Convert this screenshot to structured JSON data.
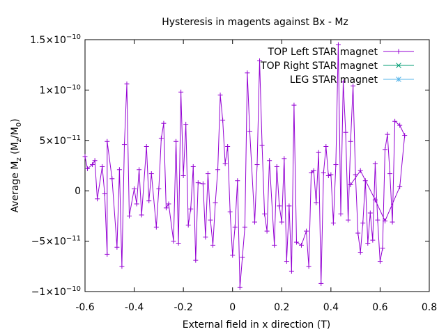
{
  "chart_data": {
    "type": "line",
    "title": "Hysteresis in magents against Bx - Mz",
    "xlabel": "External field in x direction (T)",
    "ylabel_base": "Average M",
    "ylabel_sub": "z",
    "ylabel_paren_open": " (M",
    "ylabel_sub2": "z",
    "ylabel_slash": "/M",
    "ylabel_sub3": "0",
    "ylabel_paren_close": ")",
    "xlim": [
      -0.6,
      0.8
    ],
    "ylim": [
      -1e-10,
      1.5e-10
    ],
    "x_ticks": [
      {
        "value": -0.6,
        "label": "-0.6"
      },
      {
        "value": -0.4,
        "label": "-0.4"
      },
      {
        "value": -0.2,
        "label": "-0.2"
      },
      {
        "value": 0,
        "label": "0"
      },
      {
        "value": 0.2,
        "label": "0.2"
      },
      {
        "value": 0.4,
        "label": "0.4"
      },
      {
        "value": 0.6,
        "label": "0.6"
      },
      {
        "value": 0.8,
        "label": "0.8"
      }
    ],
    "y_ticks": [
      {
        "value": -1e-10,
        "mant": "−1×10",
        "exp": "−10"
      },
      {
        "value": -5e-11,
        "mant": "−5×10",
        "exp": "−11"
      },
      {
        "value": 0,
        "mant": "0",
        "exp": ""
      },
      {
        "value": 5e-11,
        "mant": "5×10",
        "exp": "−11"
      },
      {
        "value": 1e-10,
        "mant": "1×10",
        "exp": "−10"
      },
      {
        "value": 1.5e-10,
        "mant": "1.5×10",
        "exp": "−10"
      }
    ],
    "grid": false,
    "legend_position": "top-right",
    "series": [
      {
        "name": "TOP Left STAR magnet",
        "color": "#9400d3",
        "marker": "plus",
        "points": [
          [
            -0.6,
            3.4e-11
          ],
          [
            -0.59,
            2.2e-11
          ],
          [
            -0.57,
            2.6e-11
          ],
          [
            -0.56,
            3e-11
          ],
          [
            -0.55,
            -8e-12
          ],
          [
            -0.53,
            2.4e-11
          ],
          [
            -0.52,
            -3e-12
          ],
          [
            -0.51,
            -6.3e-11
          ],
          [
            -0.51,
            4.9e-11
          ],
          [
            -0.49,
            1.2e-11
          ],
          [
            -0.47,
            -5.6e-11
          ],
          [
            -0.46,
            2.1e-11
          ],
          [
            -0.45,
            -7.5e-11
          ],
          [
            -0.44,
            4.6e-11
          ],
          [
            -0.43,
            1.06e-10
          ],
          [
            -0.42,
            -2.5e-11
          ],
          [
            -0.4,
            2e-12
          ],
          [
            -0.39,
            -1.3e-11
          ],
          [
            -0.38,
            2.1e-11
          ],
          [
            -0.37,
            -2.4e-11
          ],
          [
            -0.35,
            4.4e-11
          ],
          [
            -0.34,
            -1e-11
          ],
          [
            -0.33,
            1.7e-11
          ],
          [
            -0.31,
            -3.6e-11
          ],
          [
            -0.3,
            2e-12
          ],
          [
            -0.29,
            5.2e-11
          ],
          [
            -0.28,
            6.7e-11
          ],
          [
            -0.27,
            -1.7e-11
          ],
          [
            -0.26,
            -1.3e-11
          ],
          [
            -0.24,
            -5e-11
          ],
          [
            -0.23,
            4.9e-11
          ],
          [
            -0.22,
            -5.2e-11
          ],
          [
            -0.21,
            9.8e-11
          ],
          [
            -0.2,
            1.5e-11
          ],
          [
            -0.19,
            6.6e-11
          ],
          [
            -0.18,
            -3.4e-11
          ],
          [
            -0.17,
            -1.8e-11
          ],
          [
            -0.16,
            2.4e-11
          ],
          [
            -0.15,
            -6.9e-11
          ],
          [
            -0.14,
            8e-12
          ],
          [
            -0.12,
            7e-12
          ],
          [
            -0.11,
            -4.6e-11
          ],
          [
            -0.1,
            1.7e-11
          ],
          [
            -0.09,
            -2.9e-11
          ],
          [
            -0.08,
            -5.4e-11
          ],
          [
            -0.07,
            -1.2e-11
          ],
          [
            -0.06,
            2.1e-11
          ],
          [
            -0.05,
            9.5e-11
          ],
          [
            -0.04,
            7e-11
          ],
          [
            -0.03,
            2.7e-11
          ],
          [
            -0.02,
            4.4e-11
          ],
          [
            -0.01,
            -2.1e-11
          ],
          [
            0.0,
            -6.4e-11
          ],
          [
            0.01,
            -3.6e-11
          ],
          [
            0.02,
            1e-11
          ],
          [
            0.03,
            -9.6e-11
          ],
          [
            0.04,
            -6.6e-11
          ],
          [
            0.05,
            -3.6e-11
          ],
          [
            0.06,
            1.17e-10
          ],
          [
            0.07,
            5.9e-11
          ],
          [
            0.09,
            -3.1e-11
          ],
          [
            0.1,
            2.6e-11
          ],
          [
            0.11,
            1.29e-10
          ],
          [
            0.12,
            4.5e-11
          ],
          [
            0.13,
            -2.3e-11
          ],
          [
            0.14,
            -4e-11
          ],
          [
            0.15,
            3e-11
          ],
          [
            0.17,
            -5.4e-11
          ],
          [
            0.18,
            2.4e-11
          ],
          [
            0.19,
            -1.5e-11
          ],
          [
            0.2,
            -3.1e-11
          ],
          [
            0.21,
            3.2e-11
          ],
          [
            0.22,
            -7e-11
          ],
          [
            0.23,
            -1.5e-11
          ],
          [
            0.24,
            -8e-11
          ],
          [
            0.25,
            8.5e-11
          ],
          [
            0.26,
            -5.1e-11
          ],
          [
            0.28,
            -5.4e-11
          ],
          [
            0.3,
            -4e-11
          ],
          [
            0.31,
            -7.5e-11
          ],
          [
            0.32,
            1.8e-11
          ],
          [
            0.33,
            2e-11
          ],
          [
            0.34,
            -1.2e-11
          ],
          [
            0.35,
            3.8e-11
          ],
          [
            0.36,
            -9.2e-11
          ],
          [
            0.37,
            1.8e-11
          ],
          [
            0.38,
            4.4e-11
          ],
          [
            0.39,
            1.5e-11
          ],
          [
            0.4,
            1.6e-11
          ],
          [
            0.41,
            -3.2e-11
          ],
          [
            0.42,
            2.6e-11
          ],
          [
            0.43,
            1.45e-10
          ],
          [
            0.44,
            -2.3e-11
          ],
          [
            0.45,
            1.08e-10
          ],
          [
            0.46,
            5.8e-11
          ],
          [
            0.47,
            -2.9e-11
          ],
          [
            0.48,
            4.9e-11
          ],
          [
            0.49,
            1.04e-10
          ],
          [
            0.5,
            1.6e-11
          ],
          [
            0.51,
            -4.2e-11
          ],
          [
            0.52,
            -6.1e-11
          ],
          [
            0.53,
            -3.2e-11
          ],
          [
            0.54,
            1e-11
          ],
          [
            0.55,
            -5.2e-11
          ],
          [
            0.56,
            -2.2e-11
          ],
          [
            0.57,
            -4.9e-11
          ],
          [
            0.58,
            2.7e-11
          ],
          [
            0.59,
            -2.9e-11
          ],
          [
            0.6,
            -7e-11
          ],
          [
            0.61,
            -5.7e-11
          ],
          [
            0.62,
            4.1e-11
          ],
          [
            0.63,
            5.6e-11
          ],
          [
            0.64,
            1.7e-11
          ],
          [
            0.65,
            -3.1e-11
          ],
          [
            0.66,
            6.9e-11
          ],
          [
            0.68,
            6.5e-11
          ],
          [
            0.7,
            5.5e-11
          ],
          [
            0.68,
            4e-12
          ],
          [
            0.62,
            -3e-11
          ],
          [
            0.58,
            -9e-12
          ],
          [
            0.52,
            2e-11
          ],
          [
            0.48,
            6e-12
          ]
        ]
      },
      {
        "name": "TOP Right STAR magnet",
        "color": "#009e73",
        "marker": "cross",
        "points": []
      },
      {
        "name": "LEG STAR magnet",
        "color": "#56b4e9",
        "marker": "star",
        "points": []
      }
    ]
  }
}
